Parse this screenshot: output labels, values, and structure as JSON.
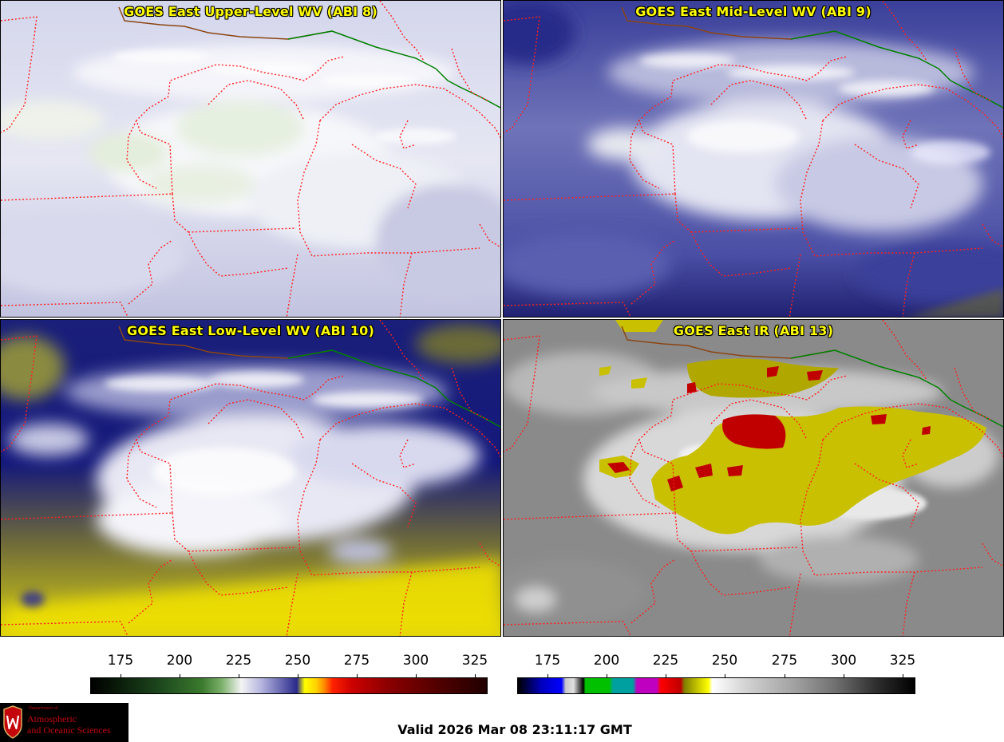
{
  "panels": [
    {
      "title": "GOES East Upper-Level WV (ABI 8)",
      "scheme": "upper"
    },
    {
      "title": "GOES East Mid-Level WV (ABI 9)",
      "scheme": "mid"
    },
    {
      "title": "GOES East Low-Level WV (ABI 10)",
      "scheme": "low"
    },
    {
      "title": "GOES East IR (ABI 13)",
      "scheme": "ir"
    }
  ],
  "colorbars": [
    {
      "name": "water-vapor",
      "ticks": [
        "175",
        "200",
        "225",
        "250",
        "275",
        "300",
        "325"
      ]
    },
    {
      "name": "infrared",
      "ticks": [
        "175",
        "200",
        "225",
        "250",
        "275",
        "300",
        "325"
      ]
    }
  ],
  "logo": {
    "dept_line": "Department of",
    "line1": "Atmospheric",
    "line2": "and Oceanic Sciences"
  },
  "valid_time": "Valid 2026 Mar 08 23:11:17 GMT",
  "colors": {
    "state_borders": "#ff2020",
    "canada_border": "#8b4513",
    "country_border_green": "#008000",
    "title_text": "#ffff00"
  }
}
